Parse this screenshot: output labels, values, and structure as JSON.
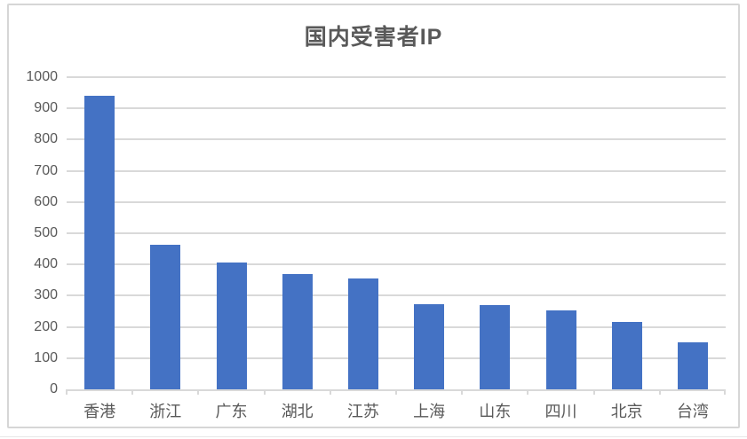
{
  "chart_data": {
    "type": "bar",
    "title": "国内受害者IP",
    "categories": [
      "香港",
      "浙江",
      "广东",
      "湖北",
      "江苏",
      "上海",
      "山东",
      "四川",
      "北京",
      "台湾"
    ],
    "values": [
      940,
      462,
      406,
      369,
      355,
      273,
      270,
      254,
      216,
      150
    ],
    "xlabel": "",
    "ylabel": "",
    "ylim": [
      0,
      1000
    ],
    "ytick_step": 100,
    "ytick_labels": [
      "0",
      "100",
      "200",
      "300",
      "400",
      "500",
      "600",
      "700",
      "800",
      "900",
      "1000"
    ],
    "grid": true,
    "legend": false,
    "colors": {
      "bar": "#4472C4",
      "text": "#595959",
      "gridline": "#d9d9d9",
      "border": "#d6d6d6"
    }
  }
}
